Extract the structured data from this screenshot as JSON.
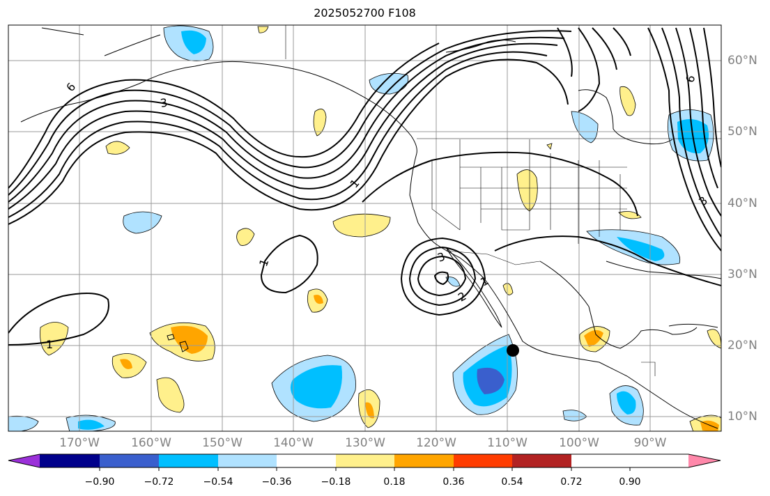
{
  "title": "2025052700 F108",
  "lat_labels": [
    "60°N",
    "50°N",
    "40°N",
    "30°N",
    "20°N",
    "10°N"
  ],
  "lon_labels": [
    "170°W",
    "160°W",
    "150°W",
    "140°W",
    "130°W",
    "120°W",
    "110°W",
    "100°W",
    "90°W"
  ],
  "colorbar": {
    "ticks": [
      "−0.90",
      "−0.72",
      "−0.54",
      "−0.36",
      "−0.18",
      "0.18",
      "0.36",
      "0.54",
      "0.72",
      "0.90"
    ],
    "colors": [
      "#9b30d9",
      "#00008b",
      "#3a5fcd",
      "#00bfff",
      "#b0e2ff",
      "#ffffff",
      "#fff08c",
      "#ffa500",
      "#ff3c00",
      "#b22222",
      "#ff88aa"
    ]
  },
  "contour_labels": [
    "6",
    "3",
    "1",
    "1",
    "1",
    "3",
    "2",
    "1",
    "6",
    "3"
  ],
  "marker": "storm-center-dot"
}
